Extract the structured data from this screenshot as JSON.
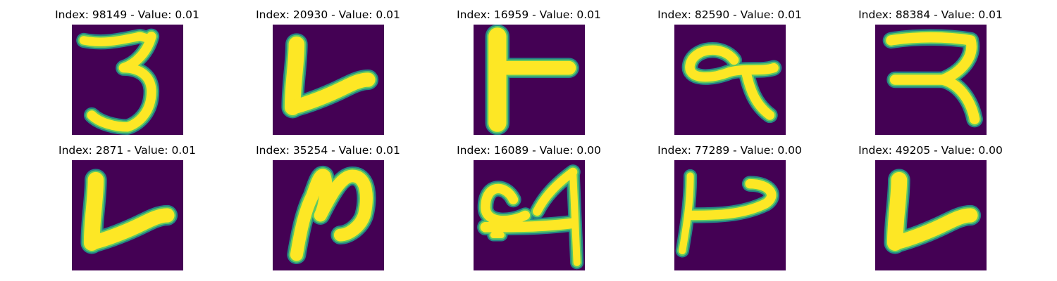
{
  "figure": {
    "background": "#ffffff",
    "colormap": {
      "low": "#440154",
      "mid_low": "#31688e",
      "mid": "#21918c",
      "mid_high": "#5ec962",
      "high": "#fde725"
    },
    "panels": [
      {
        "index": "98149",
        "value": "0.01",
        "title": "Index: 98149 - Value: 0.01",
        "glyph": "3"
      },
      {
        "index": "20930",
        "value": "0.01",
        "title": "Index: 20930 - Value: 0.01",
        "glyph": "L-check"
      },
      {
        "index": "16959",
        "value": "0.01",
        "title": "Index: 16959 - Value: 0.01",
        "glyph": "T-sideways"
      },
      {
        "index": "82590",
        "value": "0.01",
        "title": "Index: 82590 - Value: 0.01",
        "glyph": "loop-alpha"
      },
      {
        "index": "88384",
        "value": "0.01",
        "title": "Index: 88384 - Value: 0.01",
        "glyph": "R-like"
      },
      {
        "index": "2871",
        "value": "0.01",
        "title": "Index: 2871 - Value: 0.01",
        "glyph": "L-check"
      },
      {
        "index": "35254",
        "value": "0.01",
        "title": "Index: 35254 - Value: 0.01",
        "glyph": "N-curve"
      },
      {
        "index": "16089",
        "value": "0.00",
        "title": "Index: 16089 - Value: 0.00",
        "glyph": "Q4"
      },
      {
        "index": "77289",
        "value": "0.00",
        "title": "Index: 77289 - Value: 0.00",
        "glyph": "hook"
      },
      {
        "index": "49205",
        "value": "0.00",
        "title": "Index: 49205 - Value: 0.00",
        "glyph": "L-check"
      }
    ]
  }
}
